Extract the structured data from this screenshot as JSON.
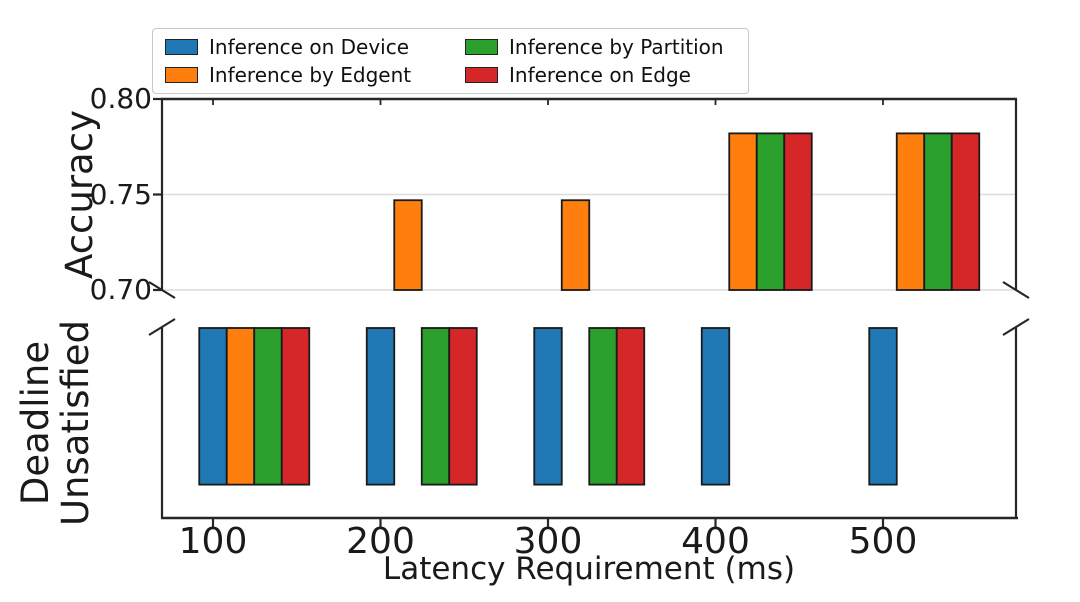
{
  "figure": {
    "background": "#ffffff"
  },
  "legend": {
    "items": [
      {
        "label": "Inference on Device",
        "color": "#1f77b4"
      },
      {
        "label": "Inference by Edgent",
        "color": "#ff7f0e"
      },
      {
        "label": "Inference by Partition",
        "color": "#2ca02c"
      },
      {
        "label": "Inference on Edge",
        "color": "#d62728"
      }
    ]
  },
  "axes": {
    "accuracy": {
      "label": "Accuracy",
      "tick_labels": [
        "0.80",
        "0.75",
        "0.70"
      ]
    },
    "deadline": {
      "label_lines": [
        "Deadline",
        "Unsatisfied"
      ]
    },
    "x": {
      "label": "Latency Requirement (ms)",
      "tick_labels": [
        "100",
        "200",
        "300",
        "400",
        "500"
      ]
    }
  },
  "style": {
    "bar_edge_color": "#1a1a1a",
    "spine_color": "#262626",
    "grid_color": "#dcdcdc",
    "text_color": "#111111",
    "legend_border_color": "#c9c9c9"
  },
  "chart_data": {
    "type": "bar",
    "title": "",
    "xlabel": "Latency Requirement (ms)",
    "categories": [
      100,
      200,
      300,
      400,
      500
    ],
    "layout_hint": {
      "broken_y_axis": true,
      "two_panels_share_x": true,
      "grid": "horizontal gridlines at 0.75 and 0.70 on accuracy panel",
      "legend_position": "top center, 2 columns, column-major order"
    },
    "panels": [
      {
        "name": "Accuracy",
        "ylabel": "Accuracy",
        "ylim": [
          0.7,
          0.8
        ],
        "yticks": [
          0.8,
          0.75,
          0.7
        ],
        "series": [
          {
            "name": "Inference on Device",
            "color": "#1f77b4",
            "values": [
              null,
              null,
              null,
              null,
              null
            ]
          },
          {
            "name": "Inference by Edgent",
            "color": "#ff7f0e",
            "values": [
              null,
              0.747,
              0.747,
              0.782,
              0.782
            ]
          },
          {
            "name": "Inference by Partition",
            "color": "#2ca02c",
            "values": [
              null,
              null,
              null,
              0.782,
              0.782
            ]
          },
          {
            "name": "Inference on Edge",
            "color": "#d62728",
            "values": [
              null,
              null,
              null,
              0.782,
              0.782
            ]
          }
        ]
      },
      {
        "name": "Deadline Unsatisfied",
        "ylabel": "Deadline Unsatisfied",
        "yticks": [],
        "orientation": "bars hang downward from top of panel (no value ticks shown)",
        "bar_length_fraction_of_panel": 0.82,
        "series": [
          {
            "name": "Inference on Device",
            "color": "#1f77b4",
            "values": [
              0.82,
              0.82,
              0.82,
              0.82,
              0.82
            ]
          },
          {
            "name": "Inference by Edgent",
            "color": "#ff7f0e",
            "values": [
              0.82,
              null,
              null,
              null,
              null
            ]
          },
          {
            "name": "Inference by Partition",
            "color": "#2ca02c",
            "values": [
              0.82,
              0.82,
              0.82,
              null,
              null
            ]
          },
          {
            "name": "Inference on Edge",
            "color": "#d62728",
            "values": [
              0.82,
              0.82,
              0.82,
              null,
              null
            ]
          }
        ]
      }
    ]
  }
}
